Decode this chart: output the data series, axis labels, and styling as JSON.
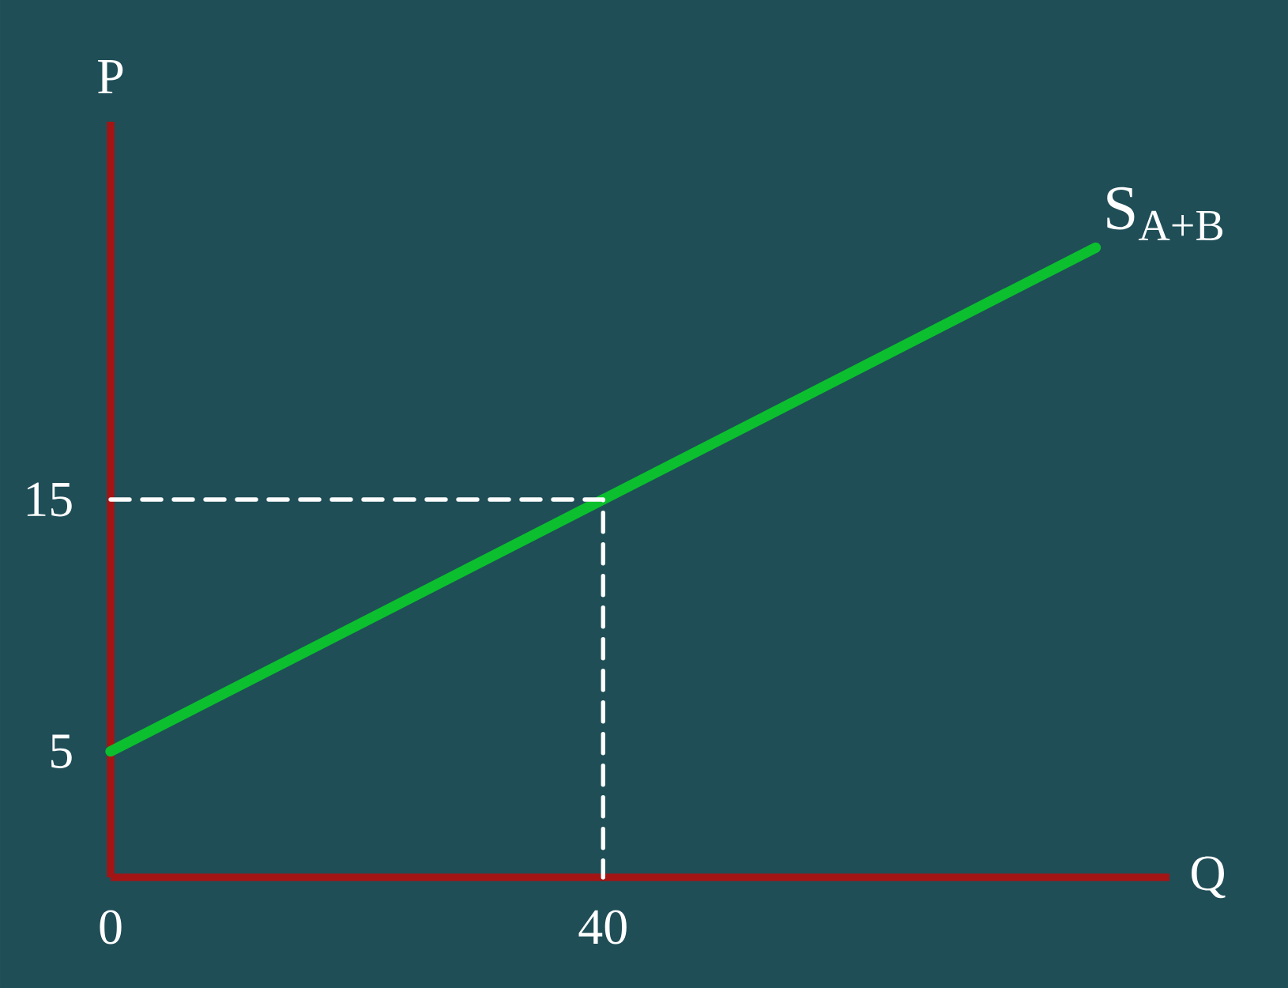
{
  "chart_data": {
    "type": "line",
    "xlabel": "Q",
    "ylabel": "P",
    "xlim": [
      0,
      86
    ],
    "ylim": [
      0,
      30
    ],
    "xticks": [
      {
        "value": 0,
        "label": "0"
      },
      {
        "value": 40,
        "label": "40"
      }
    ],
    "yticks": [
      {
        "value": 5,
        "label": "5"
      },
      {
        "value": 15,
        "label": "15"
      }
    ],
    "series": [
      {
        "name": "S$_{A+B}$",
        "color": "#0cbf2e",
        "x": [
          0,
          80
        ],
        "values": [
          5,
          25
        ],
        "line_style": "solid"
      },
      {
        "color": "#ffffff",
        "x": [
          0,
          40,
          40
        ],
        "values": [
          15,
          15,
          0
        ],
        "line_style": "dashed"
      }
    ]
  }
}
